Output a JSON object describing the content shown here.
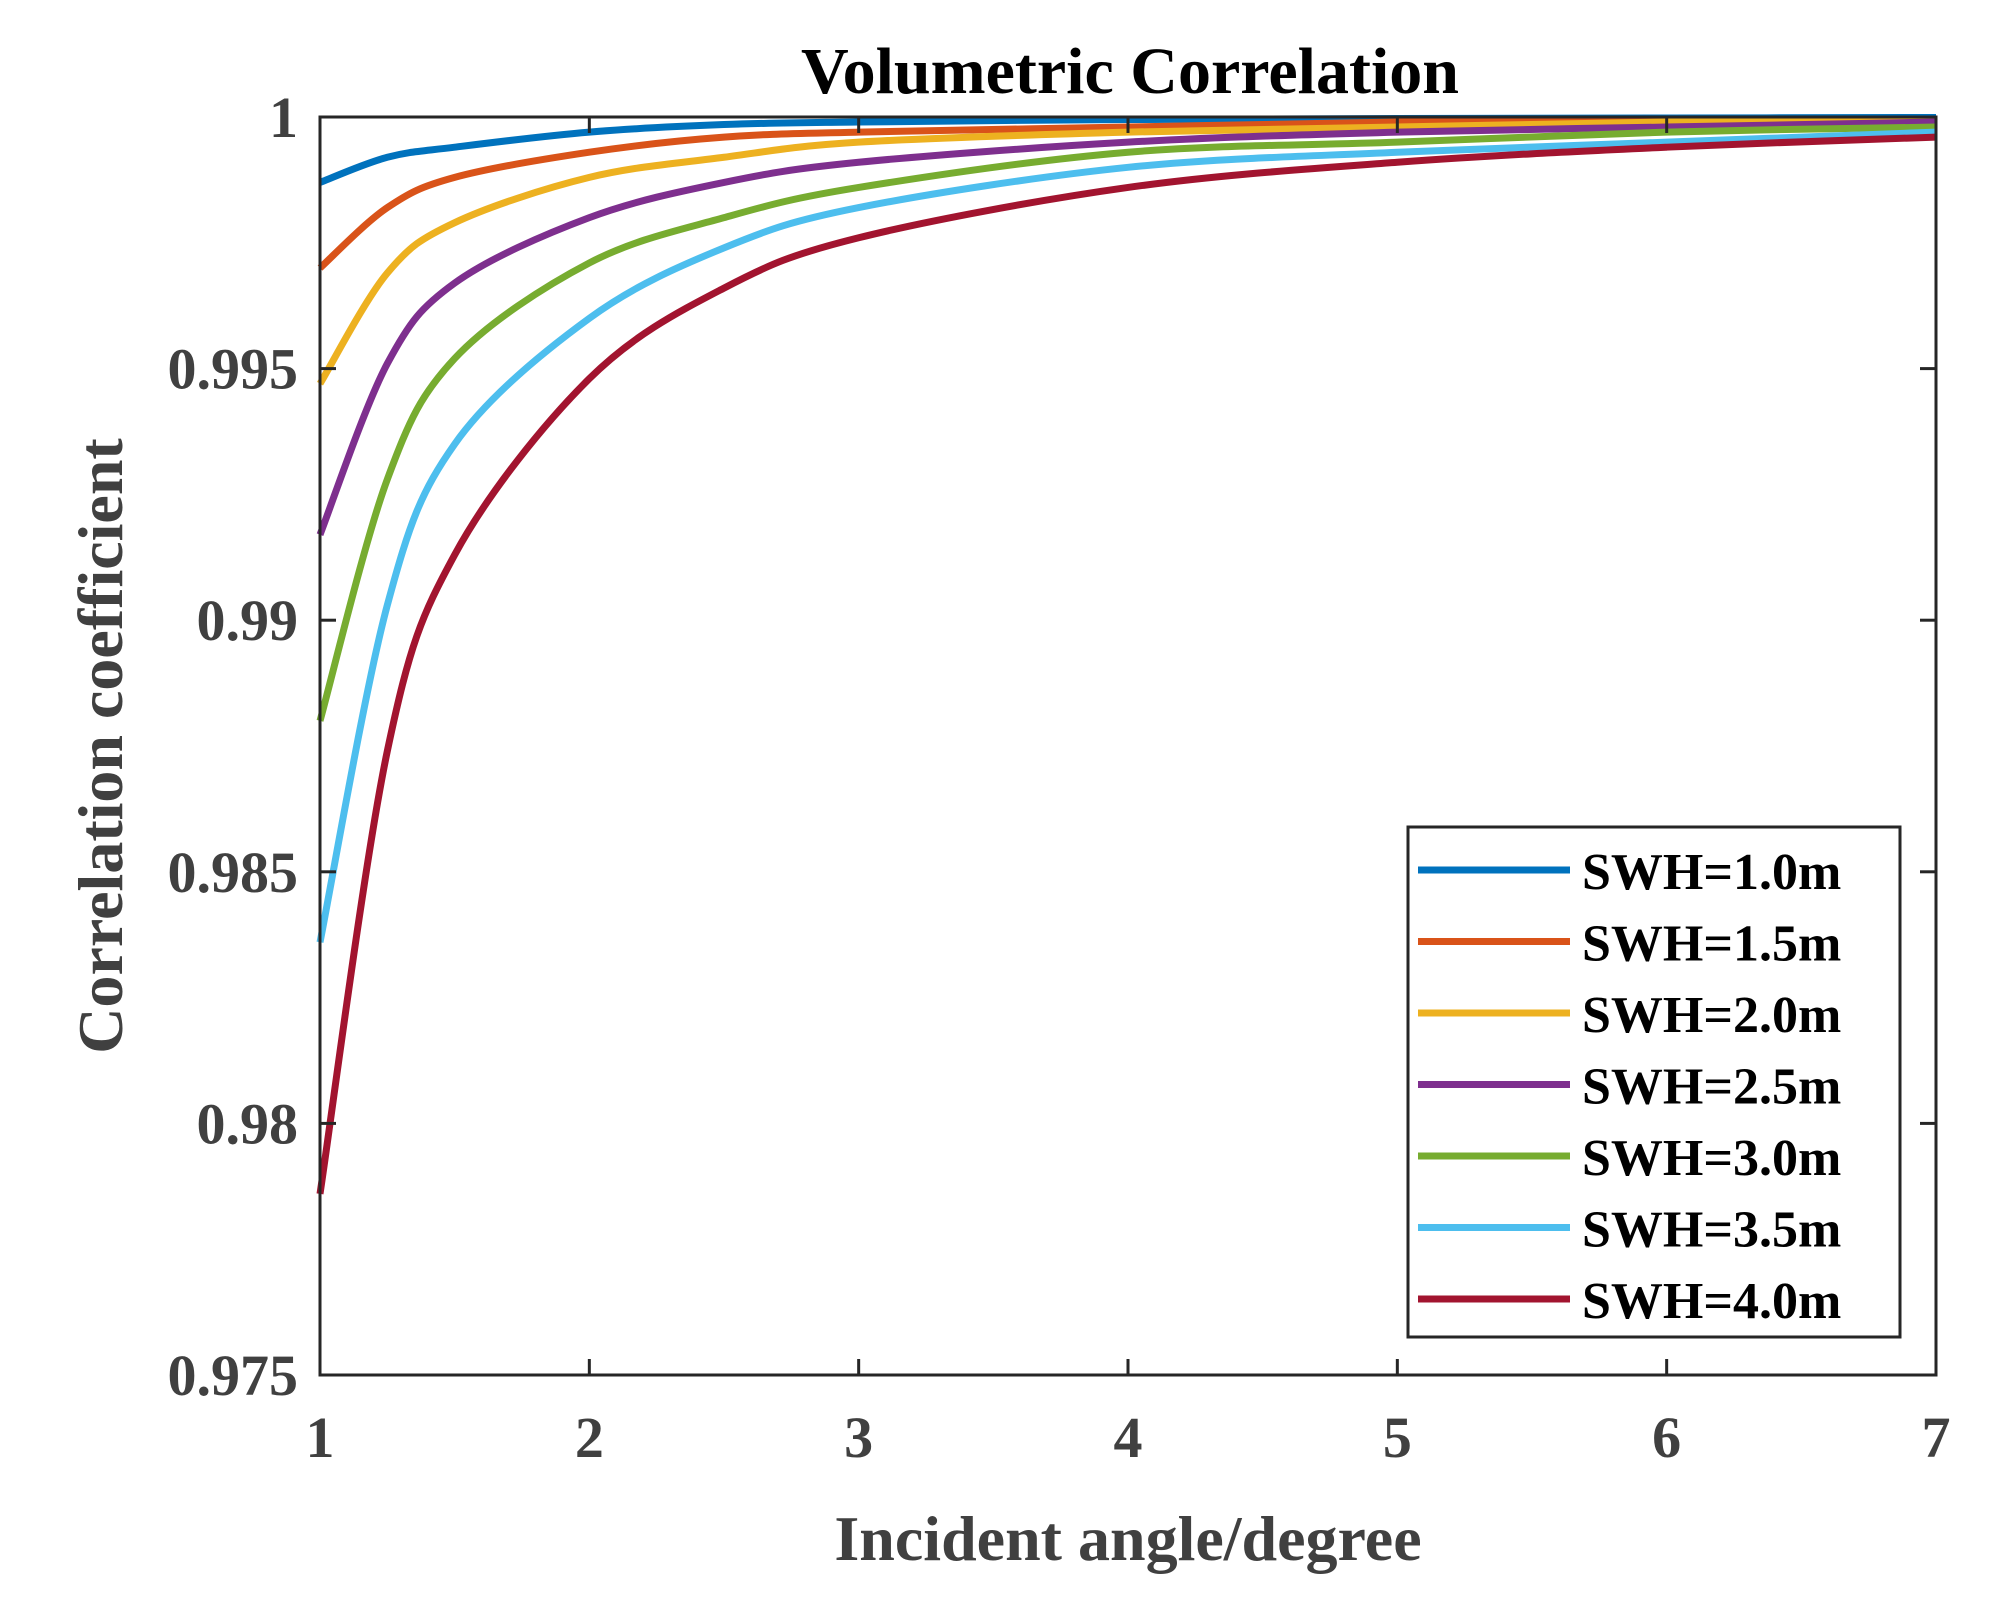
{
  "chart_data": {
    "type": "line",
    "title": "Volumetric Correlation",
    "xlabel": "Incident angle/degree",
    "ylabel": "Correlation coefficient",
    "xlim": [
      1,
      7
    ],
    "ylim": [
      0.975,
      1
    ],
    "xticks": [
      1,
      2,
      3,
      4,
      5,
      6,
      7
    ],
    "xtick_labels": [
      "1",
      "2",
      "3",
      "4",
      "5",
      "6",
      "7"
    ],
    "yticks": [
      0.975,
      0.98,
      0.985,
      0.99,
      0.995,
      1
    ],
    "ytick_labels": [
      "0.975",
      "0.98",
      "0.985",
      "0.99",
      "0.995",
      "1"
    ],
    "grid": false,
    "legend_position": "bottom-right",
    "x": [
      1,
      1.25,
      1.5,
      2,
      2.5,
      3,
      4,
      5,
      6,
      7
    ],
    "series": [
      {
        "name": "SWH=1.0m",
        "color": "#0072BD",
        "values": [
          0.9987,
          0.9992,
          0.9994,
          0.9997,
          0.99985,
          0.9999,
          0.99995,
          0.99997,
          0.99998,
          0.99999
        ]
      },
      {
        "name": "SWH=1.5m",
        "color": "#D95319",
        "values": [
          0.997,
          0.9982,
          0.9988,
          0.9993,
          0.9996,
          0.9997,
          0.9998,
          0.9999,
          0.99993,
          0.99995
        ]
      },
      {
        "name": "SWH=2.0m",
        "color": "#EDB120",
        "values": [
          0.9947,
          0.9969,
          0.9979,
          0.9988,
          0.9992,
          0.9995,
          0.9997,
          0.9998,
          0.9999,
          0.99993
        ]
      },
      {
        "name": "SWH=2.5m",
        "color": "#7E2F8E",
        "values": [
          0.9917,
          0.9951,
          0.9967,
          0.998,
          0.9987,
          0.9991,
          0.9995,
          0.9997,
          0.9998,
          0.9999
        ]
      },
      {
        "name": "SWH=3.0m",
        "color": "#77AC30",
        "values": [
          0.988,
          0.9928,
          0.9952,
          0.9971,
          0.998,
          0.9986,
          0.9993,
          0.9995,
          0.9997,
          0.9998
        ]
      },
      {
        "name": "SWH=3.5m",
        "color": "#4DBEEE",
        "values": [
          0.9836,
          0.9903,
          0.9935,
          0.996,
          0.9974,
          0.9982,
          0.999,
          0.9993,
          0.9995,
          0.9997
        ]
      },
      {
        "name": "SWH=4.0m",
        "color": "#A2142F",
        "values": [
          0.9786,
          0.9874,
          0.9913,
          0.9948,
          0.9966,
          0.9976,
          0.9986,
          0.9991,
          0.9994,
          0.9996
        ]
      }
    ]
  }
}
